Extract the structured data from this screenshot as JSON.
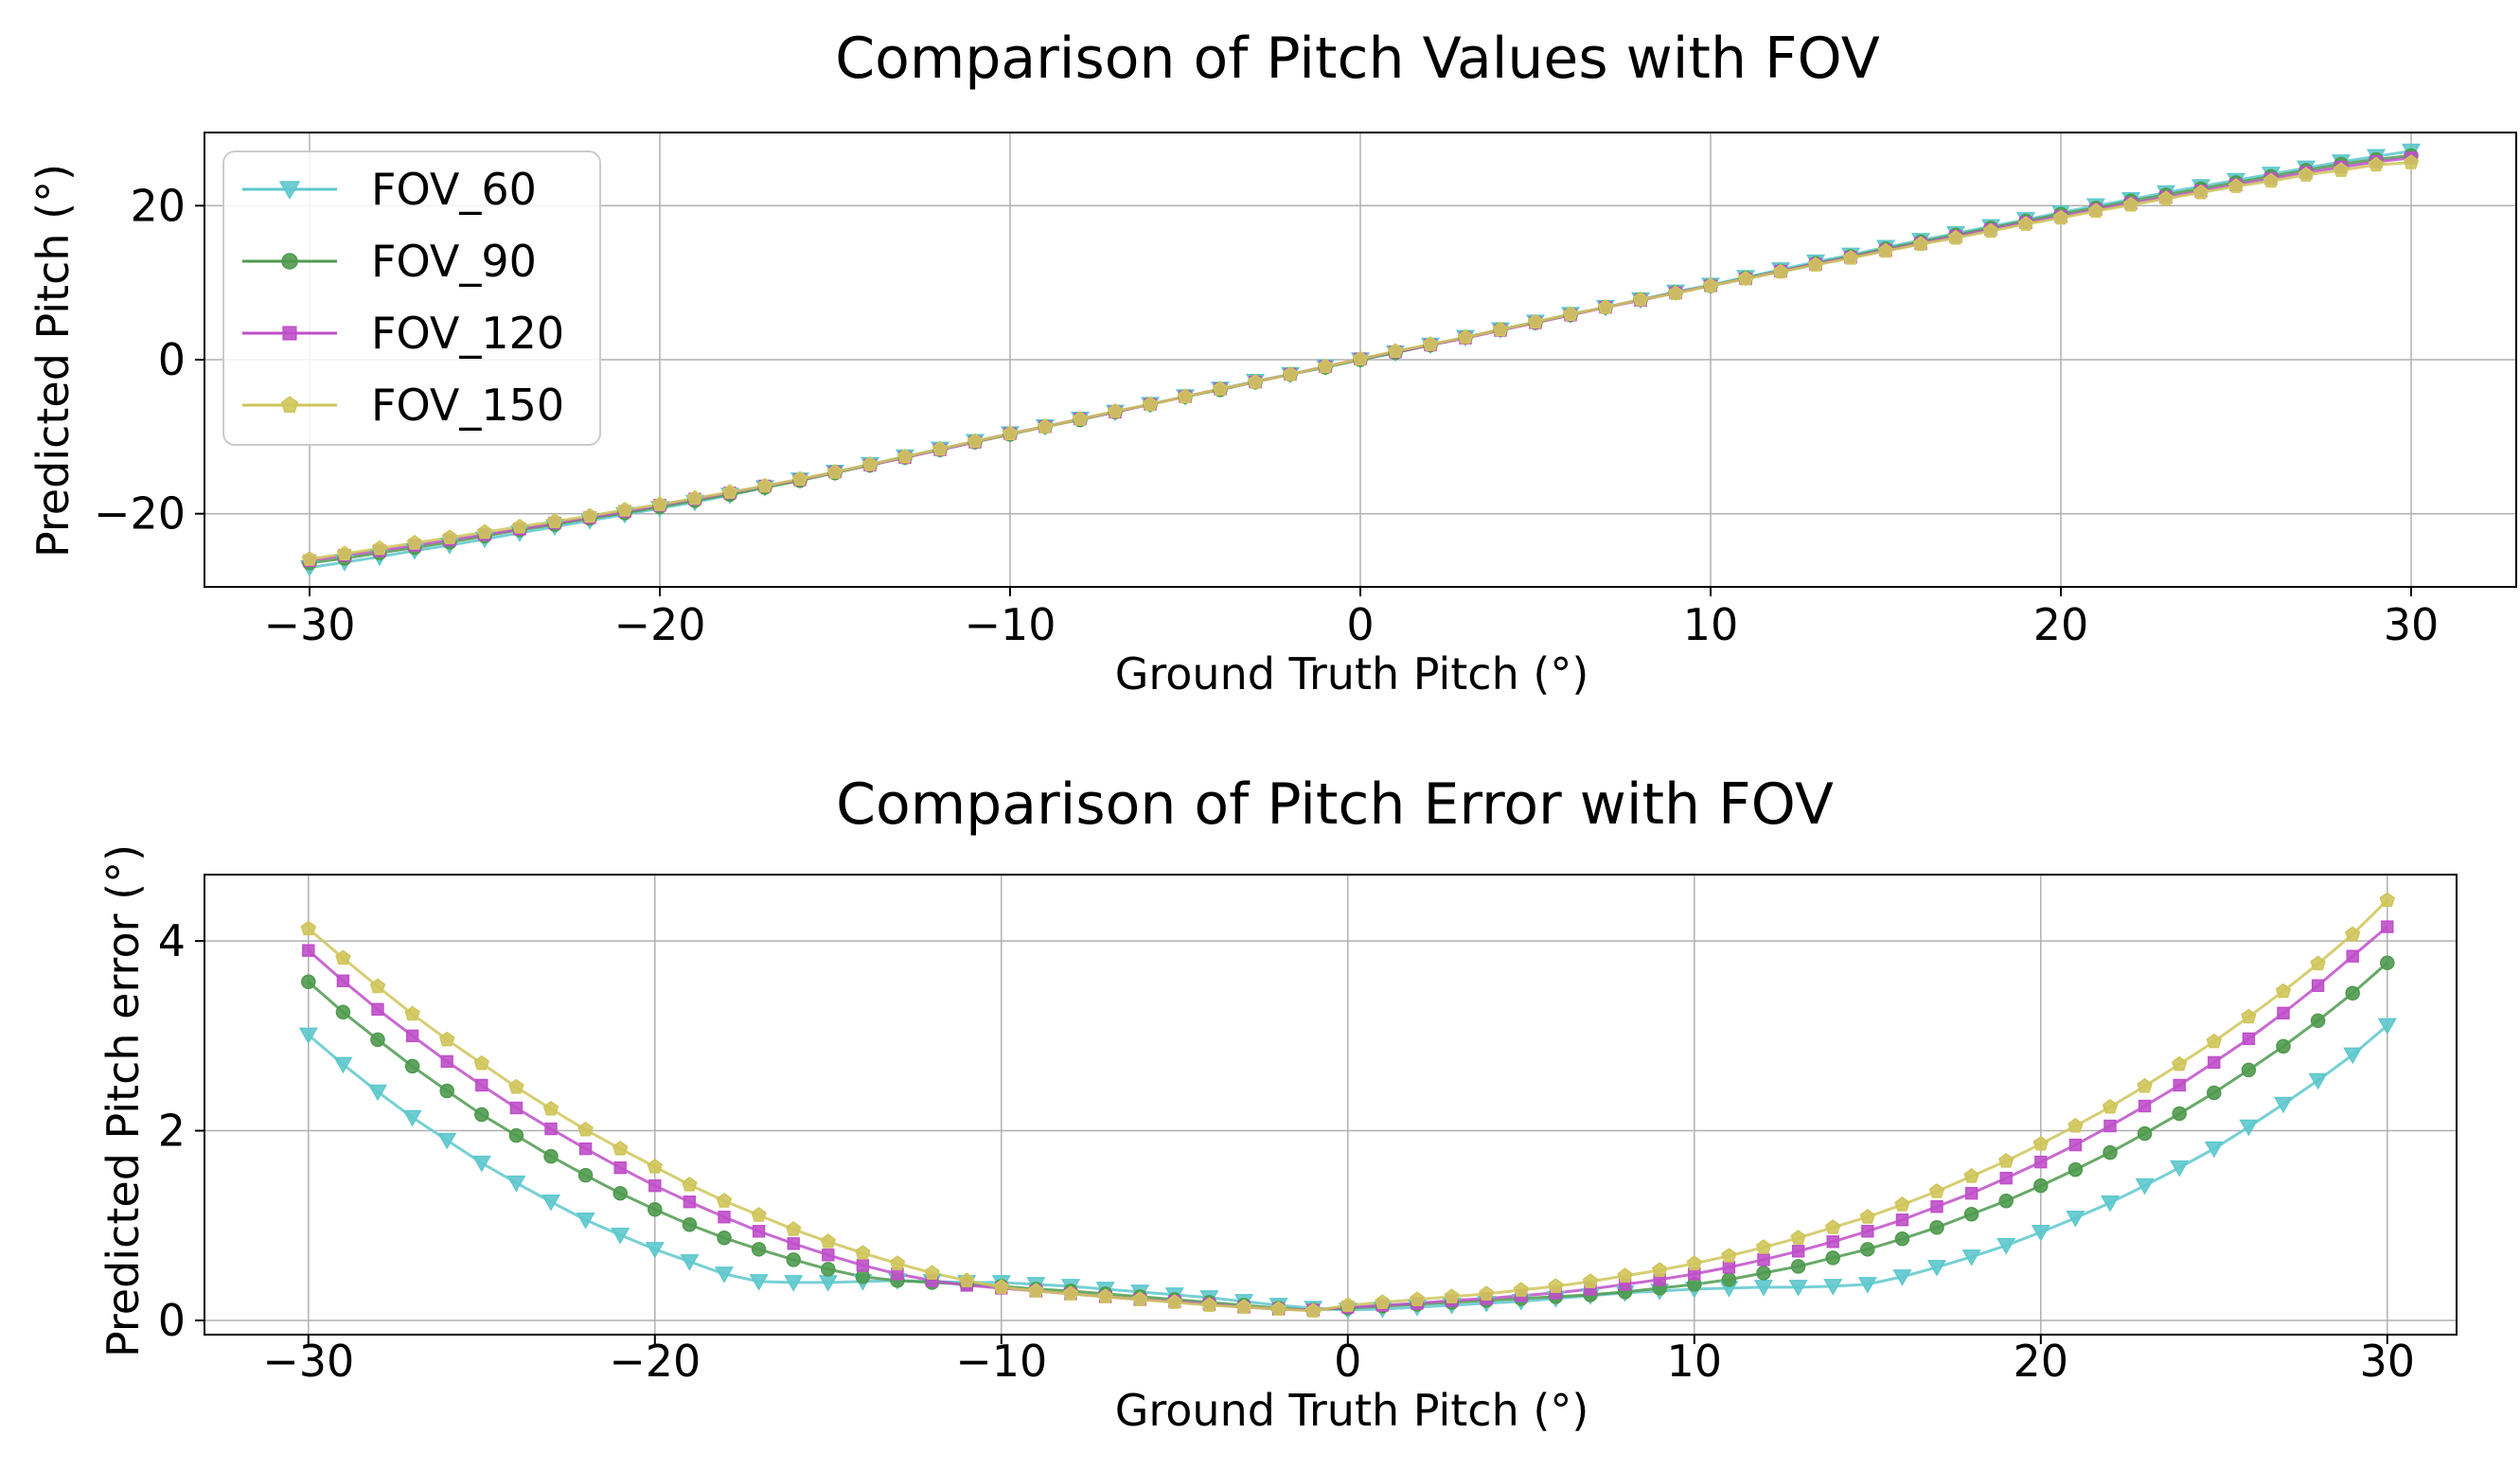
{
  "chart_data": [
    {
      "type": "line",
      "title": "Comparison of Pitch Values with FOV",
      "xlabel": "Ground Truth Pitch (°)",
      "ylabel": "Predicted Pitch (°)",
      "xlim": [
        -33,
        33
      ],
      "ylim": [
        -29.5,
        29.5
      ],
      "xticks": [
        -30,
        -20,
        -10,
        0,
        10,
        20,
        30
      ],
      "xtick_labels": [
        "−30",
        "−20",
        "−10",
        "0",
        "10",
        "20",
        "30"
      ],
      "yticks": [
        -20,
        0,
        20
      ],
      "ytick_labels": [
        "−20",
        "0",
        "20"
      ],
      "grid": true,
      "legend": {
        "position": "upper-left"
      },
      "x": [
        -30,
        -29,
        -28,
        -27,
        -26,
        -25,
        -24,
        -23,
        -22,
        -21,
        -20,
        -19,
        -18,
        -17,
        -16,
        -15,
        -14,
        -13,
        -12,
        -11,
        -10,
        -9,
        -8,
        -7,
        -6,
        -5,
        -4,
        -3,
        -2,
        -1,
        0,
        1,
        2,
        3,
        4,
        5,
        6,
        7,
        8,
        9,
        10,
        11,
        12,
        13,
        14,
        15,
        16,
        17,
        18,
        19,
        20,
        21,
        22,
        23,
        24,
        25,
        26,
        27,
        28,
        29,
        30
      ],
      "series": [
        {
          "name": "FOV_60",
          "color": "#5ec8cd",
          "marker": "triangle-down",
          "values": [
            -27.0,
            -26.3,
            -25.6,
            -24.8,
            -24.1,
            -23.3,
            -22.5,
            -21.7,
            -20.9,
            -20.1,
            -19.3,
            -18.5,
            -17.6,
            -16.6,
            -15.6,
            -14.6,
            -13.6,
            -12.6,
            -11.6,
            -10.6,
            -9.6,
            -8.7,
            -7.7,
            -6.8,
            -5.8,
            -4.8,
            -3.8,
            -2.8,
            -1.9,
            -0.9,
            0.0,
            0.9,
            1.9,
            2.9,
            3.9,
            4.9,
            5.9,
            6.8,
            7.8,
            8.8,
            9.7,
            10.7,
            11.7,
            12.7,
            13.6,
            14.6,
            15.5,
            16.4,
            17.3,
            18.2,
            19.1,
            20.0,
            20.8,
            21.7,
            22.5,
            23.3,
            24.1,
            24.9,
            25.7,
            26.4,
            27.1
          ]
        },
        {
          "name": "FOV_90",
          "color": "#4f9a4f",
          "marker": "circle",
          "values": [
            -26.4,
            -25.8,
            -25.1,
            -24.4,
            -23.7,
            -22.9,
            -22.1,
            -21.4,
            -20.6,
            -19.9,
            -19.1,
            -18.3,
            -17.5,
            -16.6,
            -15.7,
            -14.7,
            -13.7,
            -12.7,
            -11.7,
            -10.7,
            -9.7,
            -8.7,
            -7.8,
            -6.8,
            -5.8,
            -4.8,
            -3.9,
            -2.9,
            -1.9,
            -1.0,
            0.0,
            0.9,
            1.9,
            2.9,
            3.9,
            4.8,
            5.8,
            6.8,
            7.8,
            8.7,
            9.6,
            10.6,
            11.5,
            12.5,
            13.4,
            14.4,
            15.3,
            16.2,
            17.1,
            18.0,
            18.9,
            19.7,
            20.6,
            21.4,
            22.2,
            23.0,
            23.8,
            24.6,
            25.4,
            26.0,
            26.5
          ]
        },
        {
          "name": "FOV_120",
          "color": "#bf4fc9",
          "marker": "square",
          "values": [
            -26.1,
            -25.4,
            -24.8,
            -24.1,
            -23.4,
            -22.7,
            -22.0,
            -21.2,
            -20.5,
            -19.7,
            -18.9,
            -18.1,
            -17.3,
            -16.4,
            -15.6,
            -14.6,
            -13.7,
            -12.7,
            -11.7,
            -10.7,
            -9.6,
            -8.7,
            -7.7,
            -6.8,
            -5.8,
            -4.8,
            -3.8,
            -2.9,
            -1.9,
            -0.9,
            0.1,
            1.0,
            1.9,
            2.8,
            3.8,
            4.8,
            5.8,
            6.8,
            7.7,
            8.7,
            9.6,
            10.5,
            11.5,
            12.4,
            13.3,
            14.2,
            15.1,
            16.0,
            16.9,
            17.8,
            18.6,
            19.5,
            20.3,
            21.1,
            21.9,
            22.7,
            23.5,
            24.3,
            25.0,
            25.7,
            26.2
          ]
        },
        {
          "name": "FOV_150",
          "color": "#cfc55a",
          "marker": "pentagon",
          "values": [
            -25.9,
            -25.2,
            -24.5,
            -23.8,
            -23.1,
            -22.4,
            -21.7,
            -21.0,
            -20.3,
            -19.5,
            -18.8,
            -18.0,
            -17.2,
            -16.4,
            -15.5,
            -14.6,
            -13.6,
            -12.6,
            -11.6,
            -10.6,
            -9.6,
            -8.7,
            -7.7,
            -6.7,
            -5.8,
            -4.8,
            -3.8,
            -2.9,
            -1.9,
            -0.9,
            0.1,
            1.1,
            2.0,
            2.9,
            3.9,
            4.9,
            5.9,
            6.8,
            7.8,
            8.6,
            9.6,
            10.5,
            11.4,
            12.3,
            13.2,
            14.1,
            15.0,
            15.8,
            16.7,
            17.6,
            18.4,
            19.3,
            20.1,
            20.9,
            21.7,
            22.5,
            23.2,
            24.0,
            24.6,
            25.3,
            25.6
          ]
        }
      ]
    },
    {
      "type": "line",
      "title": "Comparison of Pitch Error with FOV",
      "xlabel": "Ground Truth Pitch (°)",
      "ylabel": "Predicted Pitch error (°)",
      "xlim": [
        -33,
        32
      ],
      "ylim": [
        -0.15,
        4.7
      ],
      "xticks": [
        -30,
        -20,
        -10,
        0,
        10,
        20,
        30
      ],
      "xtick_labels": [
        "−30",
        "−20",
        "−10",
        "0",
        "10",
        "20",
        "30"
      ],
      "yticks": [
        0,
        2,
        4
      ],
      "ytick_labels": [
        "0",
        "2",
        "4"
      ],
      "grid": true,
      "x": [
        -30,
        -29,
        -28,
        -27,
        -26,
        -25,
        -24,
        -23,
        -22,
        -21,
        -20,
        -19,
        -18,
        -17,
        -16,
        -15,
        -14,
        -13,
        -12,
        -11,
        -10,
        -9,
        -8,
        -7,
        -6,
        -5,
        -4,
        -3,
        -2,
        -1,
        0,
        1,
        2,
        3,
        4,
        5,
        6,
        7,
        8,
        9,
        10,
        11,
        12,
        13,
        14,
        15,
        16,
        17,
        18,
        19,
        20,
        21,
        22,
        23,
        24,
        25,
        26,
        27,
        28,
        29,
        30
      ],
      "series": [
        {
          "name": "FOV_60",
          "color": "#5ec8cd",
          "marker": "triangle-down",
          "values": [
            3.01,
            2.7,
            2.41,
            2.14,
            1.9,
            1.66,
            1.45,
            1.25,
            1.06,
            0.9,
            0.75,
            0.62,
            0.49,
            0.41,
            0.4,
            0.4,
            0.41,
            0.42,
            0.41,
            0.4,
            0.4,
            0.38,
            0.36,
            0.33,
            0.3,
            0.27,
            0.24,
            0.2,
            0.16,
            0.13,
            0.11,
            0.12,
            0.14,
            0.16,
            0.18,
            0.2,
            0.23,
            0.26,
            0.29,
            0.31,
            0.33,
            0.34,
            0.35,
            0.35,
            0.36,
            0.38,
            0.46,
            0.56,
            0.67,
            0.79,
            0.93,
            1.08,
            1.24,
            1.42,
            1.61,
            1.81,
            2.04,
            2.28,
            2.53,
            2.8,
            3.11
          ]
        },
        {
          "name": "FOV_90",
          "color": "#4f9a4f",
          "marker": "circle",
          "values": [
            3.57,
            3.25,
            2.96,
            2.68,
            2.42,
            2.17,
            1.95,
            1.73,
            1.53,
            1.34,
            1.17,
            1.01,
            0.87,
            0.75,
            0.64,
            0.54,
            0.46,
            0.42,
            0.4,
            0.38,
            0.36,
            0.33,
            0.31,
            0.28,
            0.25,
            0.22,
            0.19,
            0.16,
            0.13,
            0.11,
            0.13,
            0.15,
            0.17,
            0.19,
            0.21,
            0.23,
            0.25,
            0.27,
            0.3,
            0.34,
            0.38,
            0.43,
            0.5,
            0.57,
            0.66,
            0.75,
            0.86,
            0.98,
            1.12,
            1.26,
            1.42,
            1.59,
            1.77,
            1.97,
            2.18,
            2.4,
            2.64,
            2.89,
            3.16,
            3.45,
            3.77
          ]
        },
        {
          "name": "FOV_120",
          "color": "#bf4fc9",
          "marker": "square",
          "values": [
            3.9,
            3.58,
            3.28,
            3.0,
            2.73,
            2.48,
            2.24,
            2.02,
            1.81,
            1.61,
            1.42,
            1.25,
            1.09,
            0.94,
            0.81,
            0.69,
            0.58,
            0.49,
            0.42,
            0.37,
            0.34,
            0.31,
            0.28,
            0.25,
            0.22,
            0.2,
            0.17,
            0.14,
            0.12,
            0.11,
            0.14,
            0.16,
            0.18,
            0.21,
            0.23,
            0.26,
            0.29,
            0.33,
            0.38,
            0.43,
            0.49,
            0.56,
            0.64,
            0.73,
            0.83,
            0.94,
            1.06,
            1.2,
            1.34,
            1.5,
            1.67,
            1.85,
            2.05,
            2.26,
            2.48,
            2.72,
            2.97,
            3.24,
            3.53,
            3.84,
            4.15
          ]
        },
        {
          "name": "FOV_150",
          "color": "#cfc55a",
          "marker": "pentagon",
          "values": [
            4.13,
            3.82,
            3.52,
            3.23,
            2.96,
            2.71,
            2.46,
            2.23,
            2.01,
            1.81,
            1.62,
            1.43,
            1.26,
            1.11,
            0.96,
            0.83,
            0.71,
            0.6,
            0.5,
            0.42,
            0.35,
            0.31,
            0.28,
            0.25,
            0.22,
            0.19,
            0.16,
            0.14,
            0.12,
            0.1,
            0.16,
            0.19,
            0.22,
            0.25,
            0.28,
            0.32,
            0.36,
            0.41,
            0.47,
            0.53,
            0.6,
            0.68,
            0.77,
            0.87,
            0.98,
            1.09,
            1.22,
            1.36,
            1.52,
            1.68,
            1.86,
            2.05,
            2.25,
            2.47,
            2.7,
            2.94,
            3.2,
            3.47,
            3.76,
            4.07,
            4.43
          ]
        }
      ]
    }
  ]
}
